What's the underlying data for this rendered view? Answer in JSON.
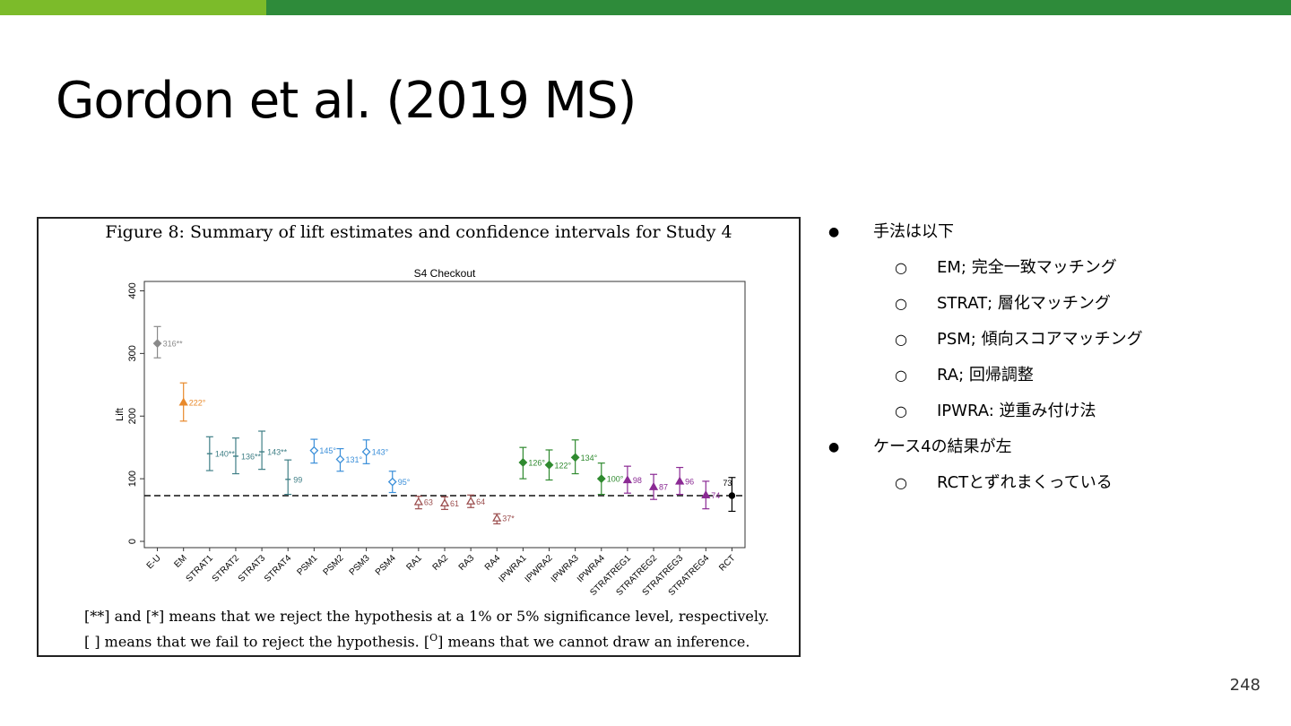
{
  "slide": {
    "title": "Gordon et al. (2019 MS)",
    "page_number": "248"
  },
  "figure": {
    "caption": "Figure 8: Summary of lift estimates and confidence intervals for Study 4",
    "note1": "[**] and [*] means that we reject the hypothesis at a 1% or 5% significance level, respectively.",
    "note2_a": "[ ] means that we fail to reject the hypothesis. [",
    "note2_sup": "O",
    "note2_b": "] means that we cannot draw an inference."
  },
  "bullets": [
    {
      "text": "手法は以下",
      "children": [
        "EM; 完全一致マッチング",
        "STRAT; 層化マッチング",
        "PSM; 傾向スコアマッチング",
        "RA; 回帰調整",
        "IPWRA: 逆重み付け法"
      ]
    },
    {
      "text": "ケース4の結果が左",
      "children": [
        "RCTとずれまくっている"
      ]
    }
  ],
  "chart_data": {
    "type": "scatter",
    "title": "S4 Checkout",
    "xlabel": "",
    "ylabel": "Lift",
    "ylim": [
      -10,
      415
    ],
    "yticks": [
      0,
      100,
      200,
      300,
      400
    ],
    "reference_line": 73,
    "grid": false,
    "points": [
      {
        "cat": "E-U",
        "value": 316,
        "label": "316**",
        "lo": 293,
        "hi": 343,
        "color": "#8a8a8a",
        "marker": "diamond"
      },
      {
        "cat": "EM",
        "value": 222,
        "label": "222°",
        "lo": 192,
        "hi": 253,
        "color": "#e8892b",
        "marker": "triangle"
      },
      {
        "cat": "STRAT1",
        "value": 140,
        "label": "140**",
        "lo": 113,
        "hi": 167,
        "color": "#3f7f86",
        "marker": "plus"
      },
      {
        "cat": "STRAT2",
        "value": 136,
        "label": "136**",
        "lo": 108,
        "hi": 165,
        "color": "#3f7f86",
        "marker": "plus"
      },
      {
        "cat": "STRAT3",
        "value": 143,
        "label": "143**",
        "lo": 115,
        "hi": 176,
        "color": "#3f7f86",
        "marker": "plus"
      },
      {
        "cat": "STRAT4",
        "value": 99,
        "label": "99",
        "lo": 75,
        "hi": 130,
        "color": "#3f7f86",
        "marker": "plus"
      },
      {
        "cat": "PSM1",
        "value": 145,
        "label": "145°",
        "lo": 125,
        "hi": 163,
        "color": "#3b8fd9",
        "marker": "diamond-open"
      },
      {
        "cat": "PSM2",
        "value": 131,
        "label": "131°",
        "lo": 112,
        "hi": 148,
        "color": "#3b8fd9",
        "marker": "diamond-open"
      },
      {
        "cat": "PSM3",
        "value": 143,
        "label": "143°",
        "lo": 124,
        "hi": 162,
        "color": "#3b8fd9",
        "marker": "diamond-open"
      },
      {
        "cat": "PSM4",
        "value": 95,
        "label": "95°",
        "lo": 78,
        "hi": 112,
        "color": "#3b8fd9",
        "marker": "diamond-open"
      },
      {
        "cat": "RA1",
        "value": 63,
        "label": "63",
        "lo": 52,
        "hi": 72,
        "color": "#9c4f4f",
        "marker": "triangle-open"
      },
      {
        "cat": "RA2",
        "value": 61,
        "label": "61",
        "lo": 51,
        "hi": 71,
        "color": "#9c4f4f",
        "marker": "triangle-open"
      },
      {
        "cat": "RA3",
        "value": 64,
        "label": "64",
        "lo": 54,
        "hi": 74,
        "color": "#9c4f4f",
        "marker": "triangle-open"
      },
      {
        "cat": "RA4",
        "value": 37,
        "label": "37*",
        "lo": 28,
        "hi": 44,
        "color": "#9c4f4f",
        "marker": "triangle-open"
      },
      {
        "cat": "IPWRA1",
        "value": 126,
        "label": "126°",
        "lo": 100,
        "hi": 150,
        "color": "#2f8a2f",
        "marker": "diamond"
      },
      {
        "cat": "IPWRA2",
        "value": 122,
        "label": "122°",
        "lo": 98,
        "hi": 146,
        "color": "#2f8a2f",
        "marker": "diamond"
      },
      {
        "cat": "IPWRA3",
        "value": 134,
        "label": "134°",
        "lo": 108,
        "hi": 162,
        "color": "#2f8a2f",
        "marker": "diamond"
      },
      {
        "cat": "IPWRA4",
        "value": 100,
        "label": "100°",
        "lo": 75,
        "hi": 125,
        "color": "#2f8a2f",
        "marker": "diamond"
      },
      {
        "cat": "STRATREG1",
        "value": 98,
        "label": "98",
        "lo": 77,
        "hi": 120,
        "color": "#8b2a94",
        "marker": "triangle"
      },
      {
        "cat": "STRATREG2",
        "value": 87,
        "label": "87",
        "lo": 67,
        "hi": 107,
        "color": "#8b2a94",
        "marker": "triangle"
      },
      {
        "cat": "STRATREG3",
        "value": 96,
        "label": "96",
        "lo": 75,
        "hi": 118,
        "color": "#8b2a94",
        "marker": "triangle"
      },
      {
        "cat": "STRATREG4",
        "value": 74,
        "label": "74",
        "lo": 52,
        "hi": 96,
        "color": "#8b2a94",
        "marker": "triangle"
      },
      {
        "cat": "RCT",
        "value": 73,
        "label": "73",
        "lo": 48,
        "hi": 102,
        "color": "#000000",
        "marker": "circle"
      }
    ]
  }
}
